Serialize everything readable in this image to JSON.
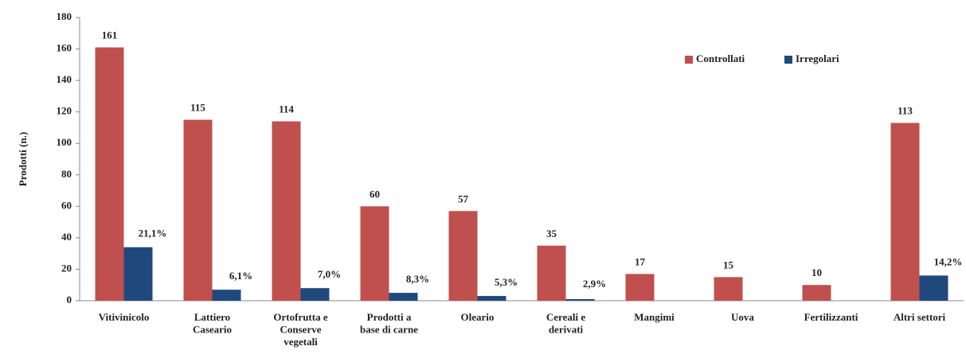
{
  "chart_data": {
    "type": "bar",
    "y_label": "Prodotti (n.)",
    "categories": [
      "Vitivinicolo",
      "Lattiero\nCaseario",
      "Ortofrutta e\nConserve\nvegetali",
      "Prodotti a\nbase di carne",
      "Oleario",
      "Cereali e\nderivati",
      "Mangimi",
      "Uova",
      "Fertilizzanti",
      "Altri settori"
    ],
    "series": [
      {
        "name": "Controllati",
        "color": "#c0504d",
        "values": [
          161,
          115,
          114,
          60,
          57,
          35,
          17,
          15,
          10,
          113
        ]
      },
      {
        "name": "Irregolari",
        "color": "#1f497d",
        "values": [
          34,
          7,
          8,
          5,
          3,
          1,
          null,
          null,
          null,
          16
        ],
        "annotations": [
          "21,1%",
          "6,1%",
          "7,0%",
          "8,3%",
          "5,3%",
          "2,9%",
          null,
          null,
          null,
          "14,2%"
        ]
      }
    ],
    "ylim": [
      0,
      180
    ],
    "yticks": [
      0,
      20,
      40,
      60,
      80,
      100,
      120,
      140,
      160,
      180
    ],
    "grid": false,
    "legend": "top-right"
  }
}
